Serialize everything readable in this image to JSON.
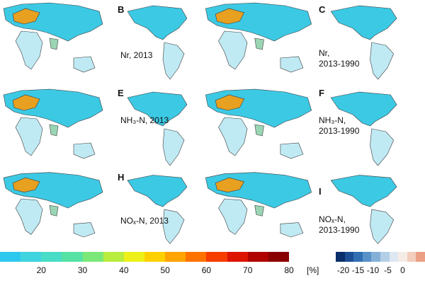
{
  "panels": [
    {
      "letter": "",
      "label": []
    },
    {
      "letter": "B",
      "label": [
        "Nr, 2013"
      ]
    },
    {
      "letter": "",
      "label": []
    },
    {
      "letter": "C",
      "label": [
        "Nr,",
        "2013-1990"
      ]
    },
    {
      "letter": "",
      "label": []
    },
    {
      "letter": "E",
      "label": [
        "NH₃-N, 2013"
      ]
    },
    {
      "letter": "",
      "label": []
    },
    {
      "letter": "F",
      "label": [
        "NH₃-N,",
        "2013-1990"
      ]
    },
    {
      "letter": "",
      "label": []
    },
    {
      "letter": "H",
      "label": [
        "NOₓ-N, 2013"
      ]
    },
    {
      "letter": "",
      "label": []
    },
    {
      "letter": "I",
      "label": [
        "NOₓ-N,",
        "2013-1990"
      ]
    }
  ],
  "colorbar_left": {
    "ticks": [
      "20",
      "30",
      "40",
      "50",
      "60",
      "70",
      "80"
    ],
    "tick_values": [
      20,
      30,
      40,
      50,
      60,
      70,
      80
    ],
    "range": [
      10,
      80
    ],
    "colors": [
      "#2ec8ee",
      "#3fd4e0",
      "#49dcc6",
      "#55e2a4",
      "#7ae878",
      "#b8ec3e",
      "#eef01a",
      "#ffd000",
      "#ffa400",
      "#ff7200",
      "#f73c00",
      "#dc1400",
      "#b00000",
      "#8a0000"
    ]
  },
  "colorbar_right": {
    "unit": "[%]",
    "ticks": [
      "-20",
      "-15",
      "-10",
      "-5",
      "0"
    ],
    "tick_values": [
      -20,
      -15,
      -10,
      -5,
      0
    ],
    "range": [
      -22.5,
      7.5
    ],
    "colors": [
      "#0a2f6b",
      "#1c4f95",
      "#2f6fb2",
      "#5890c8",
      "#84b0d8",
      "#b3cfe6",
      "#dde8f2",
      "#f5ece6",
      "#f3cdbd",
      "#ec9f84"
    ]
  }
}
